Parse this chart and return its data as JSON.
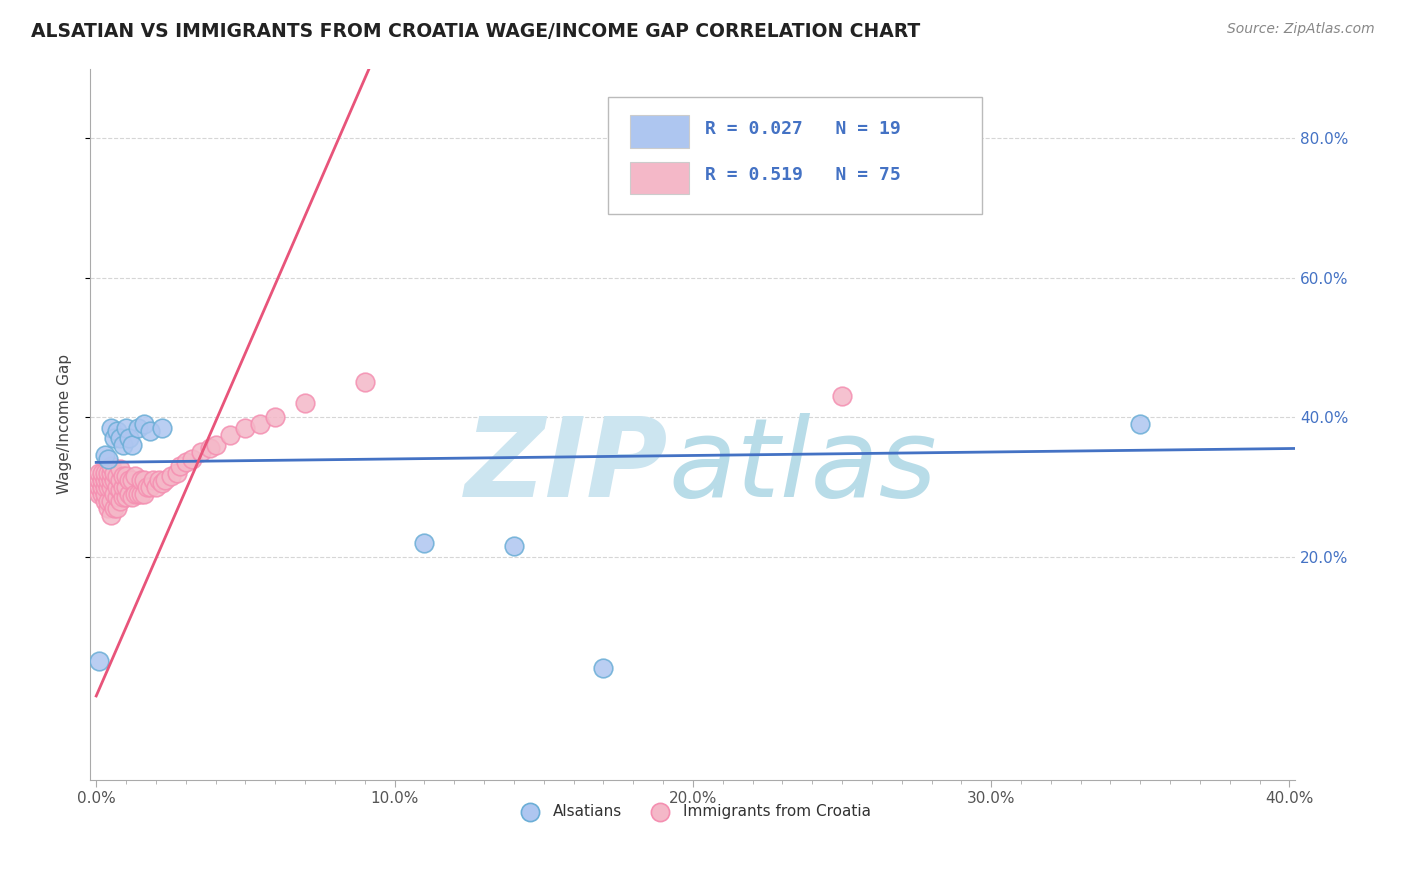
{
  "title": "ALSATIAN VS IMMIGRANTS FROM CROATIA WAGE/INCOME GAP CORRELATION CHART",
  "source": "Source: ZipAtlas.com",
  "ylabel": "Wage/Income Gap",
  "xlim": [
    -0.002,
    0.402
  ],
  "ylim": [
    -0.12,
    0.9
  ],
  "xtick_labels": [
    "0.0%",
    "",
    "",
    "",
    "",
    "",
    "",
    "",
    "",
    "",
    "10.0%",
    "",
    "",
    "",
    "",
    "",
    "",
    "",
    "",
    "",
    "20.0%",
    "",
    "",
    "",
    "",
    "",
    "",
    "",
    "",
    "",
    "30.0%",
    "",
    "",
    "",
    "",
    "",
    "",
    "",
    "",
    "",
    "40.0%"
  ],
  "xtick_values": [
    0.0,
    0.01,
    0.02,
    0.03,
    0.04,
    0.05,
    0.06,
    0.07,
    0.08,
    0.09,
    0.1,
    0.11,
    0.12,
    0.13,
    0.14,
    0.15,
    0.16,
    0.17,
    0.18,
    0.19,
    0.2,
    0.21,
    0.22,
    0.23,
    0.24,
    0.25,
    0.26,
    0.27,
    0.28,
    0.29,
    0.3,
    0.31,
    0.32,
    0.33,
    0.34,
    0.35,
    0.36,
    0.37,
    0.38,
    0.39,
    0.4
  ],
  "ytick_labels": [
    "20.0%",
    "40.0%",
    "60.0%",
    "80.0%"
  ],
  "ytick_values": [
    0.2,
    0.4,
    0.6,
    0.8
  ],
  "legend_items": [
    {
      "label_r": "0.027",
      "label_n": "19",
      "color": "#aec6f0"
    },
    {
      "label_r": "0.519",
      "label_n": "75",
      "color": "#f4b8c8"
    }
  ],
  "alsatian_color": "#aec6f0",
  "alsatian_edge": "#6baed6",
  "croatia_color": "#f4b8c8",
  "croatia_edge": "#f48fb1",
  "trendline_alsatian": "#4472c4",
  "trendline_croatia": "#e8547a",
  "watermark_zip_color": "#cce5f0",
  "watermark_atlas_color": "#b8dce8",
  "background_color": "#ffffff",
  "grid_color": "#cccccc",
  "alsatian_x": [
    0.001,
    0.003,
    0.004,
    0.005,
    0.006,
    0.007,
    0.008,
    0.009,
    0.01,
    0.011,
    0.012,
    0.014,
    0.016,
    0.018,
    0.022,
    0.17,
    0.35,
    0.14,
    0.11
  ],
  "alsatian_y": [
    0.05,
    0.345,
    0.34,
    0.385,
    0.37,
    0.38,
    0.37,
    0.36,
    0.385,
    0.37,
    0.36,
    0.385,
    0.39,
    0.38,
    0.385,
    0.04,
    0.39,
    0.215,
    0.22
  ],
  "croatia_x": [
    0.001,
    0.001,
    0.001,
    0.001,
    0.002,
    0.002,
    0.002,
    0.002,
    0.003,
    0.003,
    0.003,
    0.003,
    0.003,
    0.004,
    0.004,
    0.004,
    0.004,
    0.004,
    0.005,
    0.005,
    0.005,
    0.005,
    0.005,
    0.005,
    0.006,
    0.006,
    0.006,
    0.006,
    0.007,
    0.007,
    0.007,
    0.007,
    0.008,
    0.008,
    0.008,
    0.008,
    0.009,
    0.009,
    0.009,
    0.01,
    0.01,
    0.01,
    0.011,
    0.011,
    0.012,
    0.012,
    0.013,
    0.013,
    0.014,
    0.015,
    0.015,
    0.016,
    0.016,
    0.017,
    0.018,
    0.019,
    0.02,
    0.021,
    0.022,
    0.023,
    0.025,
    0.027,
    0.028,
    0.03,
    0.032,
    0.035,
    0.038,
    0.04,
    0.045,
    0.05,
    0.055,
    0.06,
    0.07,
    0.09,
    0.25
  ],
  "croatia_y": [
    0.29,
    0.3,
    0.31,
    0.32,
    0.29,
    0.3,
    0.31,
    0.32,
    0.28,
    0.29,
    0.3,
    0.31,
    0.32,
    0.27,
    0.28,
    0.3,
    0.31,
    0.32,
    0.26,
    0.28,
    0.3,
    0.31,
    0.32,
    0.33,
    0.27,
    0.29,
    0.31,
    0.32,
    0.27,
    0.285,
    0.3,
    0.315,
    0.28,
    0.295,
    0.31,
    0.325,
    0.285,
    0.3,
    0.315,
    0.285,
    0.3,
    0.315,
    0.29,
    0.31,
    0.285,
    0.31,
    0.29,
    0.315,
    0.29,
    0.29,
    0.31,
    0.29,
    0.31,
    0.3,
    0.3,
    0.31,
    0.3,
    0.31,
    0.305,
    0.31,
    0.315,
    0.32,
    0.33,
    0.335,
    0.34,
    0.35,
    0.355,
    0.36,
    0.375,
    0.385,
    0.39,
    0.4,
    0.42,
    0.45,
    0.43
  ],
  "als_trendline_x": [
    0.0,
    0.402
  ],
  "als_trendline_y": [
    0.335,
    0.355
  ],
  "cr_trendline_x": [
    0.0,
    0.092
  ],
  "cr_trendline_y": [
    0.0,
    0.905
  ]
}
